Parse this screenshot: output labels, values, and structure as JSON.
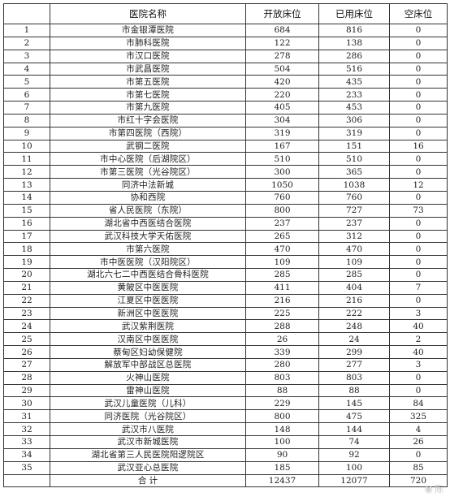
{
  "table": {
    "headers": [
      "",
      "医院名称",
      "开放床位",
      "已用床位",
      "空床位"
    ],
    "rows": [
      [
        "1",
        "市金银潭医院",
        "684",
        "816",
        "0"
      ],
      [
        "2",
        "市肺科医院",
        "122",
        "138",
        "0"
      ],
      [
        "3",
        "市汉口医院",
        "278",
        "286",
        "0"
      ],
      [
        "4",
        "市武昌医院",
        "504",
        "516",
        "0"
      ],
      [
        "5",
        "市第五医院",
        "420",
        "435",
        "0"
      ],
      [
        "6",
        "市第七医院",
        "220",
        "233",
        "0"
      ],
      [
        "7",
        "市第九医院",
        "405",
        "453",
        "0"
      ],
      [
        "8",
        "市红十字会医院",
        "304",
        "306",
        "0"
      ],
      [
        "9",
        "市第四医院（西院）",
        "319",
        "319",
        "0"
      ],
      [
        "10",
        "武钢二医院",
        "167",
        "151",
        "16"
      ],
      [
        "11",
        "市中心医院（后湖院区）",
        "510",
        "510",
        "0"
      ],
      [
        "12",
        "市第三医院（光谷院区）",
        "300",
        "365",
        "0"
      ],
      [
        "13",
        "同济中法新城",
        "1050",
        "1038",
        "12"
      ],
      [
        "14",
        "协和西院",
        "760",
        "760",
        "0"
      ],
      [
        "15",
        "省人民医院（东院）",
        "800",
        "727",
        "73"
      ],
      [
        "16",
        "湖北省中西医结合医院",
        "237",
        "237",
        "0"
      ],
      [
        "17",
        "武汉科技大学天佑医院",
        "265",
        "312",
        "0"
      ],
      [
        "18",
        "市第六医院",
        "470",
        "470",
        "0"
      ],
      [
        "19",
        "市中医医院（汉阳院区）",
        "109",
        "109",
        "0"
      ],
      [
        "20",
        "湖北六七二中西医结合骨科医院",
        "285",
        "285",
        "0"
      ],
      [
        "21",
        "黄陂区中医医院",
        "411",
        "404",
        "7"
      ],
      [
        "22",
        "江夏区中医医院",
        "216",
        "216",
        "0"
      ],
      [
        "23",
        "新洲区中医医院",
        "225",
        "222",
        "3"
      ],
      [
        "24",
        "武汉紫荆医院",
        "288",
        "248",
        "40"
      ],
      [
        "25",
        "汉南区中医医院",
        "26",
        "24",
        "2"
      ],
      [
        "26",
        "蔡甸区妇幼保健院",
        "339",
        "299",
        "40"
      ],
      [
        "27",
        "解放军中部战区总医院",
        "280",
        "277",
        "3"
      ],
      [
        "28",
        "火神山医院",
        "803",
        "803",
        "0"
      ],
      [
        "29",
        "雷神山医院",
        "88",
        "88",
        "0"
      ],
      [
        "30",
        "武汉儿童医院（儿科）",
        "229",
        "145",
        "84"
      ],
      [
        "31",
        "同济医院（光谷院区）",
        "800",
        "475",
        "325"
      ],
      [
        "32",
        "武汉市八医院",
        "148",
        "144",
        "4"
      ],
      [
        "33",
        "武汉市新城医院",
        "100",
        "74",
        "26"
      ],
      [
        "34",
        "湖北省第三人民医院阳逻院区",
        "90",
        "92",
        "0"
      ],
      [
        "35",
        "武汉亚心总医院",
        "185",
        "100",
        "85"
      ]
    ],
    "total": [
      "",
      "合  计",
      "12437",
      "12077",
      "720"
    ]
  },
  "watermark": {
    "icon": "weibo-logo-icon",
    "text": "陈"
  }
}
